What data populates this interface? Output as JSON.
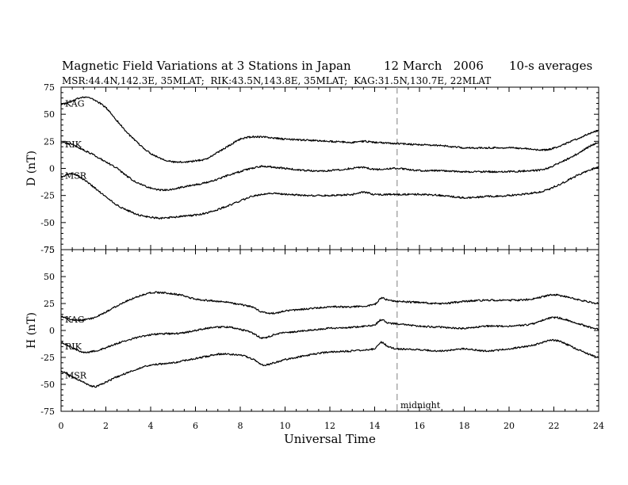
{
  "chart_data": {
    "type": "line",
    "title": "Magnetic Field Variations at 3 Stations in Japan",
    "date": "12 March   2006",
    "averaging": "10-s averages",
    "subtitle": "MSR:44.4N,142.3E, 35MLAT;  RIK:43.5N,143.8E, 35MLAT;  KAG:31.5N,130.7E, 22MLAT",
    "xlabel": "Universal Time",
    "xlim": [
      0,
      24
    ],
    "xticks": [
      0,
      2,
      4,
      6,
      8,
      10,
      12,
      14,
      16,
      18,
      20,
      22,
      24
    ],
    "annotation": {
      "text": "midnight",
      "x": 15,
      "style": "dashed vertical line",
      "color": "#aaaaaa"
    },
    "panels": [
      {
        "id": "D",
        "ylabel": "D (nT)",
        "ylim": [
          -75,
          75
        ],
        "yticks": [
          75,
          50,
          25,
          0,
          -25,
          -50,
          -75
        ],
        "series": [
          {
            "name": "KAG",
            "x": [
              0,
              0.5,
              1,
              1.5,
              2,
              2.5,
              3,
              3.5,
              4,
              4.5,
              5,
              5.5,
              6,
              6.5,
              7,
              7.5,
              8,
              8.5,
              9,
              9.5,
              10,
              11,
              12,
              13,
              13.5,
              14,
              15,
              16,
              17,
              18,
              19,
              20,
              21,
              21.5,
              22,
              23,
              24
            ],
            "y": [
              59,
              62,
              66,
              63,
              56,
              44,
              32,
              22,
              14,
              9,
              6,
              6,
              7,
              9,
              15,
              21,
              27,
              29,
              29,
              28,
              27,
              26,
              25,
              24,
              25,
              24,
              23,
              22,
              21,
              19,
              19,
              19,
              18,
              17,
              19,
              27,
              35
            ]
          },
          {
            "name": "RIK",
            "x": [
              0,
              0.5,
              1,
              1.5,
              2,
              2.5,
              3,
              3.5,
              4,
              4.5,
              5,
              5.5,
              6,
              6.5,
              7,
              7.5,
              8,
              8.5,
              9,
              9.5,
              10,
              11,
              12,
              13,
              13.5,
              14,
              15,
              16,
              17,
              18,
              19,
              20,
              21,
              21.5,
              22,
              23,
              24
            ],
            "y": [
              24,
              22,
              17,
              12,
              6,
              0,
              -8,
              -14,
              -18,
              -20,
              -19,
              -17,
              -15,
              -13,
              -10,
              -6,
              -3,
              0,
              2,
              1,
              0,
              -2,
              -2,
              0,
              1,
              -1,
              0,
              -2,
              -2,
              -3,
              -3,
              -3,
              -2,
              -1,
              3,
              13,
              24
            ]
          },
          {
            "name": "MSR",
            "x": [
              0,
              0.5,
              1,
              1.5,
              2,
              2.5,
              3,
              3.5,
              4,
              4.5,
              5,
              5.5,
              6,
              6.5,
              7,
              7.5,
              8,
              8.5,
              9,
              9.5,
              10,
              11,
              12,
              13,
              13.5,
              14,
              15,
              16,
              17,
              18,
              19,
              20,
              21,
              21.5,
              22,
              23,
              24
            ],
            "y": [
              -8,
              -5,
              -10,
              -18,
              -26,
              -34,
              -39,
              -43,
              -45,
              -46,
              -45,
              -44,
              -43,
              -41,
              -38,
              -34,
              -30,
              -26,
              -24,
              -23,
              -24,
              -25,
              -25,
              -24,
              -22,
              -24,
              -24,
              -24,
              -25,
              -27,
              -26,
              -25,
              -23,
              -21,
              -17,
              -7,
              1
            ]
          }
        ]
      },
      {
        "id": "H",
        "ylabel": "H (nT)",
        "ylim": [
          -75,
          75
        ],
        "yticks": [
          75,
          50,
          25,
          0,
          -25,
          -50,
          -75
        ],
        "series": [
          {
            "name": "KAG",
            "x": [
              0,
              0.5,
              1,
              1.5,
              2,
              2.5,
              3,
              3.5,
              4,
              4.5,
              5,
              5.5,
              6,
              6.5,
              7,
              7.5,
              8,
              8.5,
              9,
              9.5,
              10,
              11,
              12,
              13,
              14,
              14.3,
              14.6,
              15,
              16,
              17,
              18,
              19,
              20,
              21,
              22,
              23,
              24
            ],
            "y": [
              13,
              10,
              10,
              12,
              17,
              23,
              28,
              32,
              35,
              35,
              34,
              32,
              29,
              28,
              27,
              26,
              24,
              22,
              17,
              16,
              18,
              20,
              22,
              22,
              24,
              30,
              28,
              27,
              26,
              25,
              27,
              28,
              28,
              29,
              33,
              29,
              25
            ]
          },
          {
            "name": "RIK",
            "x": [
              0,
              0.5,
              1,
              1.5,
              2,
              2.5,
              3,
              3.5,
              4,
              4.5,
              5,
              5.5,
              6,
              6.5,
              7,
              7.5,
              8,
              8.5,
              9,
              9.5,
              10,
              11,
              12,
              13,
              14,
              14.3,
              14.6,
              15,
              16,
              17,
              18,
              19,
              20,
              21,
              22,
              23,
              24
            ],
            "y": [
              -11,
              -16,
              -20,
              -19,
              -16,
              -12,
              -9,
              -6,
              -4,
              -3,
              -3,
              -2,
              0,
              2,
              3,
              3,
              1,
              -2,
              -7,
              -4,
              -2,
              0,
              2,
              3,
              5,
              10,
              7,
              6,
              4,
              3,
              2,
              4,
              4,
              6,
              12,
              7,
              1
            ]
          },
          {
            "name": "MSR",
            "x": [
              0,
              0.5,
              1,
              1.5,
              2,
              2.5,
              3,
              3.5,
              4,
              4.5,
              5,
              5.5,
              6,
              6.5,
              7,
              7.5,
              8,
              8.5,
              9,
              9.5,
              10,
              11,
              12,
              13,
              14,
              14.3,
              14.6,
              15,
              16,
              17,
              18,
              19,
              20,
              21,
              22,
              23,
              24
            ],
            "y": [
              -38,
              -43,
              -48,
              -52,
              -48,
              -43,
              -39,
              -35,
              -32,
              -31,
              -30,
              -28,
              -26,
              -24,
              -22,
              -22,
              -23,
              -26,
              -32,
              -30,
              -27,
              -23,
              -20,
              -19,
              -17,
              -11,
              -15,
              -17,
              -18,
              -19,
              -17,
              -19,
              -17,
              -14,
              -9,
              -17,
              -25
            ]
          }
        ]
      }
    ]
  }
}
